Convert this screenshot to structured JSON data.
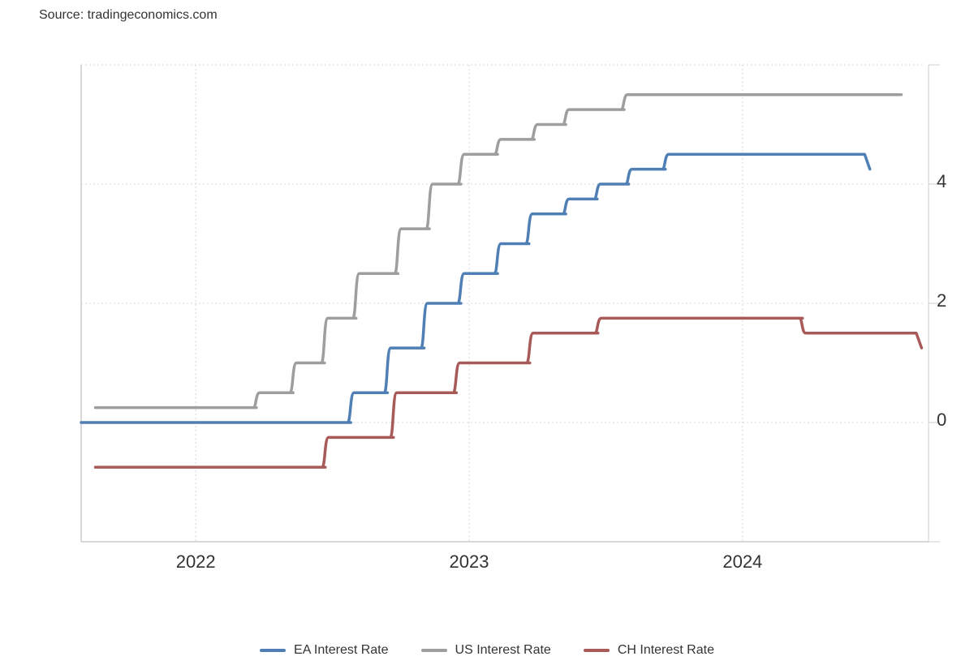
{
  "source": "Source: tradingeconomics.com",
  "colors": {
    "EA": "#4f7fb5",
    "US": "#9e9e9e",
    "CH": "#a85a58",
    "grid": "#d8d8d8",
    "axis": "#cccccc"
  },
  "chart_data": {
    "type": "line",
    "title": "",
    "xlabel": "",
    "ylabel": "",
    "x_range": [
      "2021-08-01",
      "2024-09-01"
    ],
    "ylim": [
      -2,
      6
    ],
    "y_ticks": [
      0,
      2,
      4
    ],
    "x_ticks": [
      {
        "label": "2022",
        "date": "2022-01-01"
      },
      {
        "label": "2023",
        "date": "2023-01-01"
      },
      {
        "label": "2024",
        "date": "2024-01-01"
      }
    ],
    "grid": true,
    "legend_position": "bottom",
    "series": [
      {
        "name": "EA Interest Rate",
        "color_key": "EA",
        "points": [
          [
            "2021-08-01",
            0
          ],
          [
            "2022-07-27",
            0
          ],
          [
            "2022-07-27",
            0.5
          ],
          [
            "2022-09-14",
            0.5
          ],
          [
            "2022-09-14",
            1.25
          ],
          [
            "2022-11-02",
            1.25
          ],
          [
            "2022-11-02",
            2.0
          ],
          [
            "2022-12-21",
            2.0
          ],
          [
            "2022-12-21",
            2.5
          ],
          [
            "2023-02-08",
            2.5
          ],
          [
            "2023-02-08",
            3.0
          ],
          [
            "2023-03-22",
            3.0
          ],
          [
            "2023-03-22",
            3.5
          ],
          [
            "2023-05-10",
            3.5
          ],
          [
            "2023-05-10",
            3.75
          ],
          [
            "2023-06-21",
            3.75
          ],
          [
            "2023-06-21",
            4.0
          ],
          [
            "2023-08-02",
            4.0
          ],
          [
            "2023-08-02",
            4.25
          ],
          [
            "2023-09-20",
            4.25
          ],
          [
            "2023-09-20",
            4.5
          ],
          [
            "2024-06-12",
            4.5
          ],
          [
            "2024-06-19",
            4.25
          ]
        ]
      },
      {
        "name": "US Interest Rate",
        "color_key": "US",
        "points": [
          [
            "2021-08-20",
            0.25
          ],
          [
            "2022-03-23",
            0.25
          ],
          [
            "2022-03-23",
            0.5
          ],
          [
            "2022-05-11",
            0.5
          ],
          [
            "2022-05-11",
            1.0
          ],
          [
            "2022-06-22",
            1.0
          ],
          [
            "2022-06-22",
            1.75
          ],
          [
            "2022-08-03",
            1.75
          ],
          [
            "2022-08-03",
            2.5
          ],
          [
            "2022-09-28",
            2.5
          ],
          [
            "2022-09-28",
            3.25
          ],
          [
            "2022-11-09",
            3.25
          ],
          [
            "2022-11-09",
            4.0
          ],
          [
            "2022-12-21",
            4.0
          ],
          [
            "2022-12-21",
            4.5
          ],
          [
            "2023-02-08",
            4.5
          ],
          [
            "2023-02-08",
            4.75
          ],
          [
            "2023-03-29",
            4.75
          ],
          [
            "2023-03-29",
            5.0
          ],
          [
            "2023-05-10",
            5.0
          ],
          [
            "2023-05-10",
            5.25
          ],
          [
            "2023-07-27",
            5.25
          ],
          [
            "2023-07-27",
            5.5
          ],
          [
            "2024-07-31",
            5.5
          ]
        ]
      },
      {
        "name": "CH Interest Rate",
        "color_key": "CH",
        "points": [
          [
            "2021-08-20",
            -0.75
          ],
          [
            "2022-06-23",
            -0.75
          ],
          [
            "2022-06-23",
            -0.25
          ],
          [
            "2022-09-22",
            -0.25
          ],
          [
            "2022-09-22",
            0.5
          ],
          [
            "2022-12-15",
            0.5
          ],
          [
            "2022-12-15",
            1.0
          ],
          [
            "2023-03-23",
            1.0
          ],
          [
            "2023-03-23",
            1.5
          ],
          [
            "2023-06-22",
            1.5
          ],
          [
            "2023-06-22",
            1.75
          ],
          [
            "2024-03-21",
            1.75
          ],
          [
            "2024-03-21",
            1.5
          ],
          [
            "2024-08-20",
            1.5
          ],
          [
            "2024-08-27",
            1.25
          ]
        ]
      }
    ]
  }
}
